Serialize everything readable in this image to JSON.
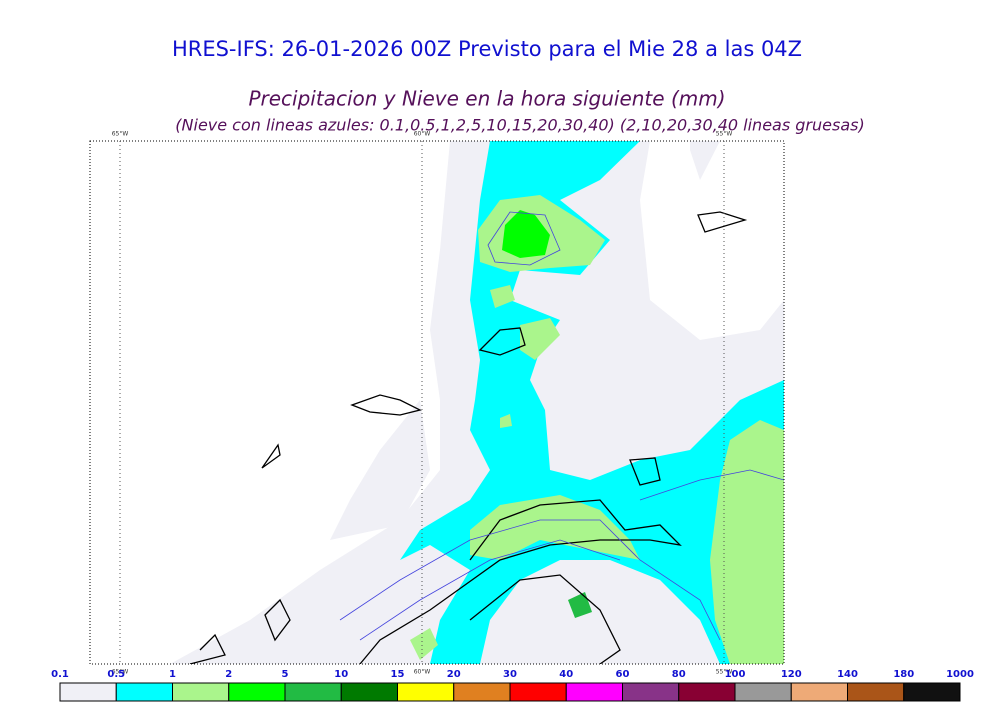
{
  "header": {
    "title": "HRES-IFS: 26-01-2026 00Z Previsto para el Mie 28 a las 04Z",
    "subtitle": "Precipitacion y Nieve en la hora siguiente (mm)",
    "note": "(Nieve con lineas azules: 0.1,0.5,1,2,5,10,15,20,30,40)  (2,10,20,30,40 lineas gruesas)"
  },
  "map": {
    "longitude_labels": [
      "65°W",
      "60°W",
      "55°W"
    ]
  },
  "colorbar": {
    "labels": [
      0.1,
      0.5,
      1,
      2,
      5,
      10,
      15,
      20,
      30,
      40,
      60,
      80,
      100,
      120,
      140,
      180,
      1000
    ],
    "colors": [
      "#f0f0f6",
      "#00ffff",
      "#aaf58c",
      "#00ff00",
      "#22bb44",
      "#007a00",
      "#ffff00",
      "#e08020",
      "#ff0000",
      "#ff00ff",
      "#883388",
      "#880033",
      "#999999",
      "#eeaa77",
      "#aa5518",
      "#111111"
    ]
  }
}
